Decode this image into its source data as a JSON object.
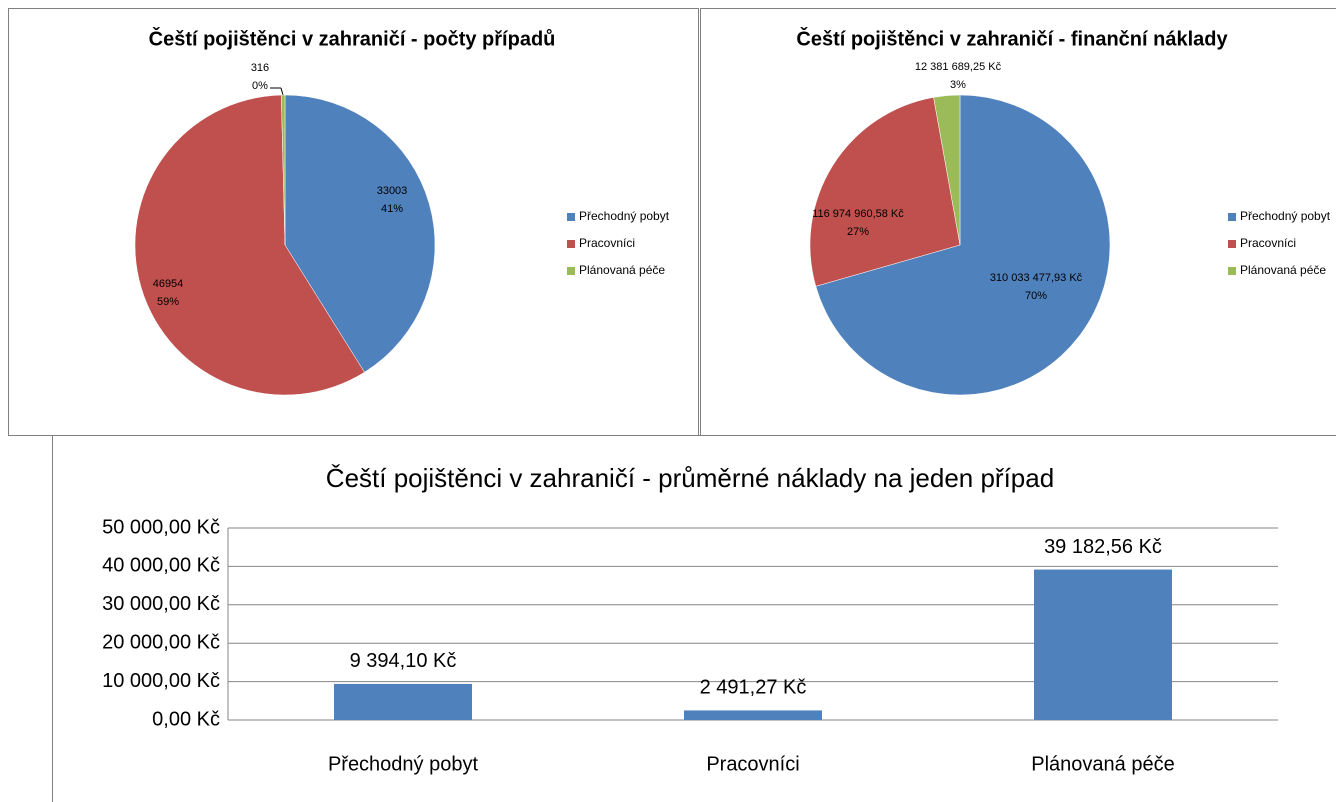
{
  "chart_data": [
    {
      "type": "pie",
      "title": "Čeští pojištěnci v zahraničí - počty případů",
      "categories": [
        "Přechodný pobyt",
        "Pracovníci",
        "Plánovaná péče"
      ],
      "values": [
        33003,
        46954,
        316
      ],
      "percentage_labels": [
        "41%",
        "59%",
        "0%"
      ],
      "colors": [
        "#4f81bd",
        "#c0504d",
        "#9bbb59"
      ],
      "legend": "right"
    },
    {
      "type": "pie",
      "title": "Čeští pojištěnci v zahraničí - finanční náklady",
      "categories": [
        "Přechodný pobyt",
        "Pracovníci",
        "Plánovaná péče"
      ],
      "values": [
        310033477.93,
        116974960.58,
        12381689.25
      ],
      "value_labels": [
        "310 033 477,93 Kč",
        "116 974 960,58 Kč",
        "12 381 689,25 Kč"
      ],
      "percentage_labels": [
        "70%",
        "27%",
        "3%"
      ],
      "colors": [
        "#4f81bd",
        "#c0504d",
        "#9bbb59"
      ],
      "legend": "right"
    },
    {
      "type": "bar",
      "title": "Čeští pojištěnci v zahraničí - průměrné náklady na jeden případ",
      "categories": [
        "Přechodný pobyt",
        "Pracovníci",
        "Plánovaná péče"
      ],
      "values": [
        9394.1,
        2491.27,
        39182.56
      ],
      "value_labels": [
        "9 394,10 Kč",
        "2 491,27 Kč",
        "39 182,56 Kč"
      ],
      "color": "#4f81bd",
      "ylim": [
        0,
        50000
      ],
      "yticks": [
        {
          "value": 0,
          "label": "0,00 Kč"
        },
        {
          "value": 10000,
          "label": "10 000,00 Kč"
        },
        {
          "value": 20000,
          "label": "20 000,00 Kč"
        },
        {
          "value": 30000,
          "label": "30 000,00 Kč"
        },
        {
          "value": 40000,
          "label": "40 000,00 Kč"
        },
        {
          "value": 50000,
          "label": "50 000,00 Kč"
        }
      ],
      "grid": true
    }
  ]
}
